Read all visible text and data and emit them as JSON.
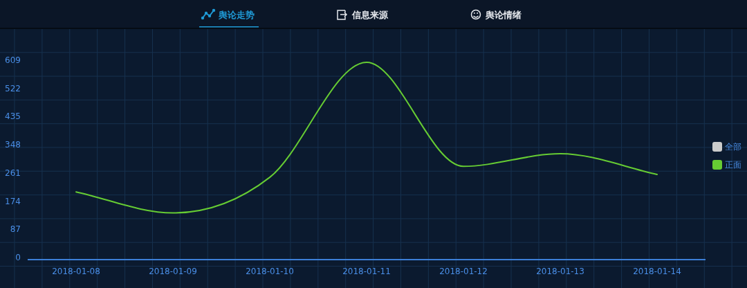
{
  "chart_data": {
    "type": "line",
    "title": "舆论走势",
    "annotations": [
      "信息来源",
      "舆论情绪"
    ],
    "categories": [
      "2018-01-08",
      "2018-01-09",
      "2018-01-10",
      "2018-01-11",
      "2018-01-12",
      "2018-01-13",
      "2018-01-14"
    ],
    "series": [
      {
        "name": "全部",
        "color": "#cccccc",
        "values": [
          null,
          null,
          null,
          null,
          null,
          null,
          null
        ]
      },
      {
        "name": "正面",
        "color": "#66cc33",
        "values": [
          209,
          144,
          254,
          609,
          288,
          327,
          263
        ]
      }
    ],
    "ylim": [
      0,
      609
    ],
    "yticks": [
      0,
      87,
      174,
      261,
      348,
      435,
      522,
      609
    ],
    "legend": "right",
    "marker": "none",
    "line_style": "solid"
  }
}
